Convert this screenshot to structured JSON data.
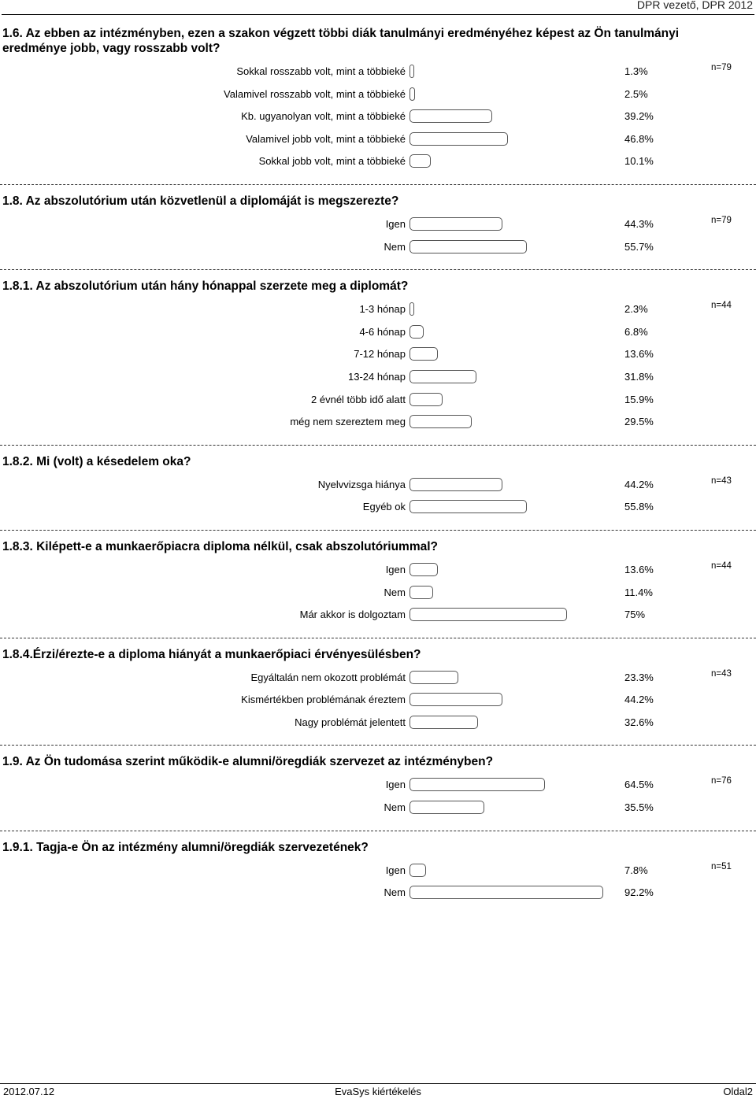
{
  "header": {
    "right": "DPR vezető, DPR 2012"
  },
  "sections": [
    {
      "title": "1.6. Az ebben az intézményben, ezen a szakon végzett többi diák tanulmányi eredményéhez képest az Ön tanulmányi eredménye jobb, vagy rosszabb volt?",
      "n": "n=79",
      "rows": [
        {
          "label": "Sokkal rosszabb volt, mint a többieké",
          "value": 1.3,
          "pct": "1.3%"
        },
        {
          "label": "Valamivel rosszabb volt, mint a többieké",
          "value": 2.5,
          "pct": "2.5%"
        },
        {
          "label": "Kb. ugyanolyan volt, mint a többieké",
          "value": 39.2,
          "pct": "39.2%"
        },
        {
          "label": "Valamivel jobb volt, mint a többieké",
          "value": 46.8,
          "pct": "46.8%"
        },
        {
          "label": "Sokkal jobb volt, mint a többieké",
          "value": 10.1,
          "pct": "10.1%"
        }
      ]
    },
    {
      "title": "1.8. Az abszolutórium után közvetlenül a diplomáját is megszerezte?",
      "n": "n=79",
      "rows": [
        {
          "label": "Igen",
          "value": 44.3,
          "pct": "44.3%"
        },
        {
          "label": "Nem",
          "value": 55.7,
          "pct": "55.7%"
        }
      ]
    },
    {
      "title": "1.8.1. Az abszolutórium után hány hónappal szerzete meg a diplomát?",
      "n": "n=44",
      "rows": [
        {
          "label": "1-3 hónap",
          "value": 2.3,
          "pct": "2.3%"
        },
        {
          "label": "4-6 hónap",
          "value": 6.8,
          "pct": "6.8%"
        },
        {
          "label": "7-12 hónap",
          "value": 13.6,
          "pct": "13.6%"
        },
        {
          "label": "13-24 hónap",
          "value": 31.8,
          "pct": "31.8%"
        },
        {
          "label": "2 évnél több idő alatt",
          "value": 15.9,
          "pct": "15.9%"
        },
        {
          "label": "még nem szereztem meg",
          "value": 29.5,
          "pct": "29.5%"
        }
      ]
    },
    {
      "title": "1.8.2. Mi (volt) a késedelem oka?",
      "n": "n=43",
      "rows": [
        {
          "label": "Nyelvvizsga hiánya",
          "value": 44.2,
          "pct": "44.2%"
        },
        {
          "label": "Egyéb ok",
          "value": 55.8,
          "pct": "55.8%"
        }
      ]
    },
    {
      "title": "1.8.3. Kilépett-e a munkaerőpiacra diploma nélkül, csak abszolutóriummal?",
      "n": "n=44",
      "rows": [
        {
          "label": "Igen",
          "value": 13.6,
          "pct": "13.6%"
        },
        {
          "label": "Nem",
          "value": 11.4,
          "pct": "11.4%"
        },
        {
          "label": "Már akkor is dolgoztam",
          "value": 75,
          "pct": "75%"
        }
      ]
    },
    {
      "title": "1.8.4.Érzi/érezte-e a diploma hiányát a  munkaerőpiaci érvényesülésben?",
      "n": "n=43",
      "rows": [
        {
          "label": "Egyáltalán nem okozott problémát",
          "value": 23.3,
          "pct": "23.3%"
        },
        {
          "label": "Kismértékben problémának éreztem",
          "value": 44.2,
          "pct": "44.2%"
        },
        {
          "label": "Nagy problémát jelentett",
          "value": 32.6,
          "pct": "32.6%"
        }
      ]
    },
    {
      "title": "1.9. Az Ön tudomása szerint működik-e alumni/öregdiák szervezet az intézményben?",
      "n": "n=76",
      "rows": [
        {
          "label": "Igen",
          "value": 64.5,
          "pct": "64.5%"
        },
        {
          "label": "Nem",
          "value": 35.5,
          "pct": "35.5%"
        }
      ]
    },
    {
      "title": "1.9.1. Tagja-e Ön az intézmény alumni/öregdiák szervezetének?",
      "n": "n=51",
      "rows": [
        {
          "label": "Igen",
          "value": 7.8,
          "pct": "7.8%"
        },
        {
          "label": "Nem",
          "value": 92.2,
          "pct": "92.2%"
        }
      ]
    }
  ],
  "footer": {
    "date": "2012.07.12",
    "center": "EvaSys kiértékelés",
    "page": "Oldal2"
  }
}
